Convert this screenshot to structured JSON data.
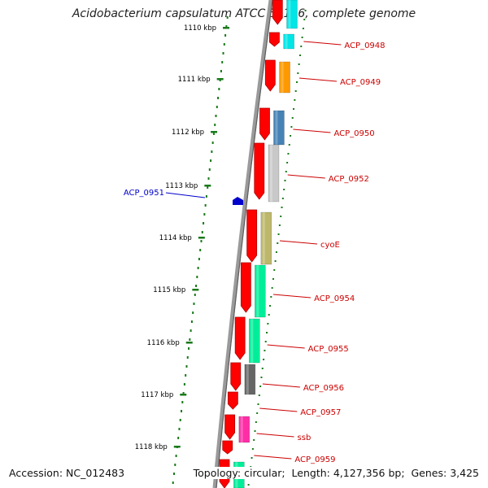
{
  "title": "Acidobacterium capsulatum ATCC 51196, complete genome",
  "footer": {
    "accession_label": "Accession:",
    "accession": "NC_012483",
    "topology_label": "Topology:",
    "topology": "circular",
    "length_label": "Length:",
    "length": "4,127,356 bp",
    "genes_label": "Genes:",
    "genes": "3,425"
  },
  "ticks": [
    "1110 kbp",
    "1111 kbp",
    "1112 kbp",
    "1113 kbp",
    "1114 kbp",
    "1115 kbp",
    "1116 kbp",
    "1117 kbp",
    "1118 kbp"
  ],
  "colors": {
    "backbone": "#808080",
    "cds": "#ff0000",
    "tick": "#1a7a1a",
    "gene_label": "#cc0000",
    "reverse_label": "#0000cc"
  },
  "gene_labels": [
    {
      "name": "ACP_0948",
      "color": "#00e5e5"
    },
    {
      "name": "ACP_0949",
      "color": "#ff9900"
    },
    {
      "name": "ACP_0950",
      "color": "#4682b4"
    },
    {
      "name": "ACP_0952",
      "color": "#c8c8c8"
    },
    {
      "name": "cyoE",
      "color": "#bdb76b"
    },
    {
      "name": "ACP_0954",
      "color": "#00ee99"
    },
    {
      "name": "ACP_0955",
      "color": "#00ee99"
    },
    {
      "name": "ACP_0956",
      "color": "#666666"
    },
    {
      "name": "ACP_0957",
      "color": "#ff0000"
    },
    {
      "name": "ssb",
      "color": "#ff2da6"
    },
    {
      "name": "ACP_0959",
      "color": "#ff0000"
    }
  ],
  "reverse_gene": {
    "name": "ACP_0951",
    "color": "#0000cc"
  }
}
